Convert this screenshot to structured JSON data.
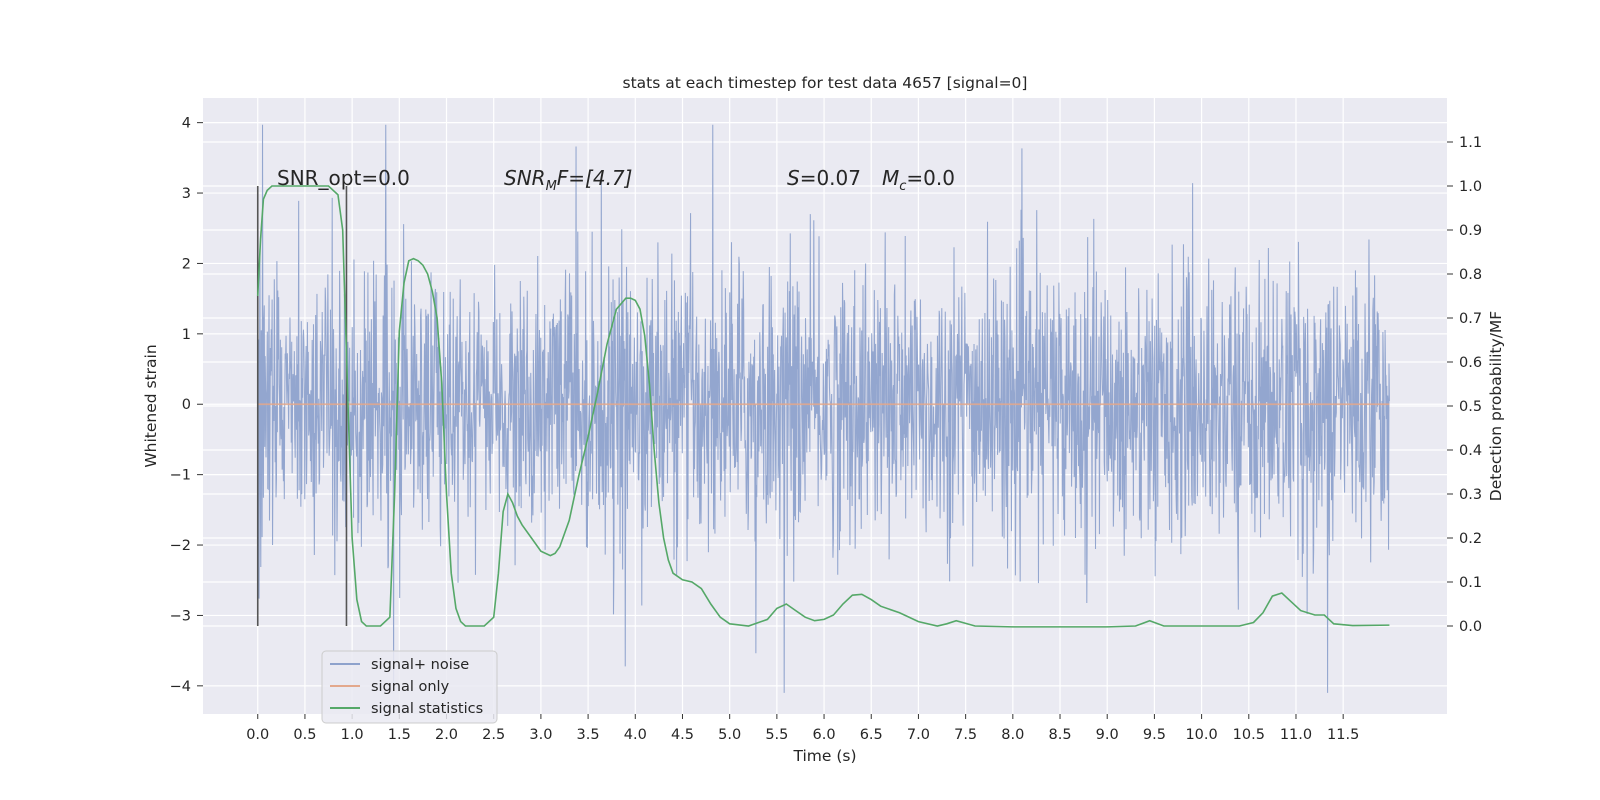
{
  "chart_data": {
    "type": "line",
    "title": "stats at each timestep for test data 4657 [signal=0]",
    "xlabel": "Time (s)",
    "ylabel": "Whitened strain",
    "ylabel_right": "Detection probability/MF",
    "xlim": [
      -0.58,
      12.6
    ],
    "ylim": [
      -4.4,
      4.35
    ],
    "ylim_right": [
      -0.2,
      1.2
    ],
    "x_ticks": [
      0.0,
      0.5,
      1.0,
      1.5,
      2.0,
      2.5,
      3.0,
      3.5,
      4.0,
      4.5,
      5.0,
      5.5,
      6.0,
      6.5,
      7.0,
      7.5,
      8.0,
      8.5,
      9.0,
      9.5,
      10.0,
      10.5,
      11.0,
      11.5
    ],
    "x_tick_labels": [
      "0.0",
      "0.5",
      "1.0",
      "1.5",
      "2.0",
      "2.5",
      "3.0",
      "3.5",
      "4.0",
      "4.5",
      "5.0",
      "5.5",
      "6.0",
      "6.5",
      "7.0",
      "7.5",
      "8.0",
      "8.5",
      "9.0",
      "9.5",
      "10.0",
      "10.5",
      "11.0",
      "11.5"
    ],
    "y_ticks": [
      -4,
      -3,
      -2,
      -1,
      0,
      1,
      2,
      3,
      4
    ],
    "y_tick_labels": [
      "−4",
      "−3",
      "−2",
      "−1",
      "0",
      "1",
      "2",
      "3",
      "4"
    ],
    "y_ticks_right": [
      0.0,
      0.1,
      0.2,
      0.3,
      0.4,
      0.5,
      0.6,
      0.7,
      0.8,
      0.9,
      1.0,
      1.1
    ],
    "y_tick_labels_right": [
      "0.0",
      "0.1",
      "0.2",
      "0.3",
      "0.4",
      "0.5",
      "0.6",
      "0.7",
      "0.8",
      "0.9",
      "1.0",
      "1.1"
    ],
    "grid": true,
    "legend_position": "lower-left",
    "annotations": {
      "snr_opt": "SNR_opt=0.0",
      "snr_mf_main": "SNR",
      "snr_mf_sub": "M",
      "snr_mf_rest": "F=[4.7]",
      "s_main": "S",
      "s_rest": "=0.07",
      "mc_main": "M",
      "mc_sub": "c",
      "mc_rest": "=0.0"
    },
    "vlines": [
      0.0,
      0.94
    ],
    "series": [
      {
        "name": "signal+ noise",
        "color": "#8ea2cc",
        "axis": "left",
        "x_range": [
          0.0,
          11.99
        ],
        "envelope_typical": [
          -2.2,
          2.3
        ],
        "y_min": -4.1,
        "y_max": 3.97
      },
      {
        "name": "signal only",
        "color": "#e3a88c",
        "axis": "left",
        "x": [
          0.0,
          11.99
        ],
        "y": [
          0.0,
          0.0
        ]
      },
      {
        "name": "signal statistics",
        "color": "#55a868",
        "axis": "right",
        "x": [
          0.0,
          0.03,
          0.06,
          0.1,
          0.15,
          0.25,
          0.4,
          0.6,
          0.75,
          0.85,
          0.9,
          0.95,
          1.0,
          1.05,
          1.1,
          1.15,
          1.2,
          1.3,
          1.4,
          1.45,
          1.5,
          1.55,
          1.6,
          1.65,
          1.7,
          1.75,
          1.8,
          1.85,
          1.9,
          1.95,
          2.0,
          2.05,
          2.1,
          2.15,
          2.2,
          2.3,
          2.4,
          2.5,
          2.55,
          2.6,
          2.65,
          2.7,
          2.75,
          2.8,
          2.9,
          3.0,
          3.1,
          3.15,
          3.2,
          3.3,
          3.4,
          3.5,
          3.6,
          3.7,
          3.8,
          3.9,
          3.95,
          4.0,
          4.05,
          4.1,
          4.15,
          4.2,
          4.25,
          4.3,
          4.35,
          4.4,
          4.5,
          4.6,
          4.7,
          4.8,
          4.9,
          5.0,
          5.2,
          5.4,
          5.5,
          5.6,
          5.7,
          5.8,
          5.9,
          6.0,
          6.1,
          6.2,
          6.3,
          6.4,
          6.5,
          6.6,
          6.8,
          7.0,
          7.2,
          7.3,
          7.4,
          7.6,
          8.0,
          8.5,
          9.0,
          9.3,
          9.45,
          9.6,
          10.0,
          10.4,
          10.55,
          10.65,
          10.75,
          10.85,
          10.95,
          11.05,
          11.2,
          11.3,
          11.4,
          11.6,
          11.99
        ],
        "y": [
          0.75,
          0.88,
          0.97,
          0.99,
          1.0,
          1.0,
          1.0,
          1.0,
          1.0,
          0.98,
          0.9,
          0.55,
          0.2,
          0.06,
          0.01,
          0.0,
          0.0,
          0.0,
          0.02,
          0.3,
          0.67,
          0.78,
          0.83,
          0.835,
          0.83,
          0.82,
          0.8,
          0.76,
          0.7,
          0.55,
          0.3,
          0.12,
          0.04,
          0.01,
          0.0,
          0.0,
          0.0,
          0.02,
          0.12,
          0.26,
          0.3,
          0.28,
          0.25,
          0.23,
          0.2,
          0.17,
          0.16,
          0.165,
          0.18,
          0.24,
          0.34,
          0.43,
          0.53,
          0.64,
          0.72,
          0.745,
          0.745,
          0.74,
          0.72,
          0.66,
          0.55,
          0.4,
          0.28,
          0.2,
          0.15,
          0.12,
          0.105,
          0.1,
          0.085,
          0.05,
          0.02,
          0.005,
          0.0,
          0.015,
          0.04,
          0.05,
          0.035,
          0.02,
          0.012,
          0.015,
          0.025,
          0.05,
          0.07,
          0.072,
          0.06,
          0.045,
          0.03,
          0.01,
          0.0,
          0.005,
          0.012,
          0.0,
          -0.002,
          -0.002,
          -0.002,
          0.0,
          0.012,
          0.0,
          0.0,
          0.0,
          0.008,
          0.03,
          0.068,
          0.075,
          0.055,
          0.035,
          0.025,
          0.025,
          0.005,
          0.001,
          0.002
        ]
      }
    ]
  }
}
